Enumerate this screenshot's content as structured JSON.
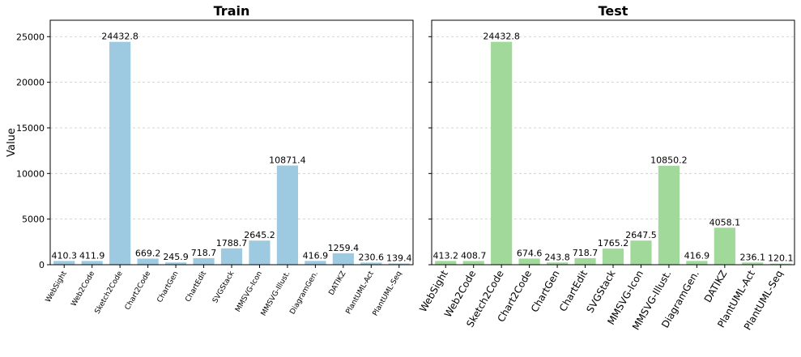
{
  "chart_data": [
    {
      "type": "bar",
      "title": "Train",
      "ylabel": "Value",
      "categories": [
        "WebSight",
        "Web2Code",
        "Sketch2Code",
        "Chart2Code",
        "ChartGen",
        "ChartEdit",
        "SVGStack",
        "MMSVG-Icon",
        "MMSVG-Illust.",
        "DiagramGen.",
        "DATIKZ",
        "PlantUML-Act",
        "PlantUML-Seq"
      ],
      "values": [
        410.3,
        411.9,
        24432.8,
        669.2,
        245.9,
        718.7,
        1788.7,
        2645.2,
        10871.4,
        416.9,
        1259.4,
        230.6,
        139.4
      ],
      "color": "#9ecae1",
      "ylim": [
        0,
        26800
      ],
      "yticks": [
        0,
        5000,
        10000,
        15000,
        20000,
        25000
      ],
      "grid": true,
      "ytick_labels": true
    },
    {
      "type": "bar",
      "title": "Test",
      "categories": [
        "WebSight",
        "Web2Code",
        "Sketch2Code",
        "Chart2Code",
        "ChartGen",
        "ChartEdit",
        "SVGStack",
        "MMSVG-Icon",
        "MMSVG-Illust.",
        "DiagramGen.",
        "DATIKZ",
        "PlantUML-Act",
        "PlantUML-Seq"
      ],
      "values": [
        413.2,
        408.7,
        24432.8,
        674.6,
        243.8,
        718.7,
        1765.2,
        2647.5,
        10850.2,
        416.9,
        4058.1,
        236.1,
        120.1
      ],
      "color": "#a1d99b",
      "ylim": [
        0,
        26800
      ],
      "yticks": [
        0,
        5000,
        10000,
        15000,
        20000,
        25000
      ],
      "grid": true,
      "ytick_labels": false
    }
  ]
}
